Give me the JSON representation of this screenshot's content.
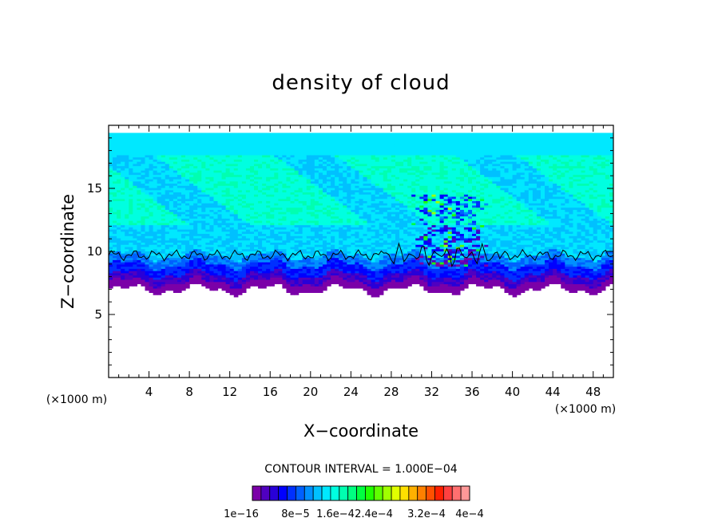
{
  "chart_data": {
    "type": "heatmap",
    "title": "density of cloud",
    "xlabel": "X−coordinate",
    "ylabel": "Z−coordinate",
    "x_unit": "(×1000 m)",
    "z_unit": "(×1000 m)",
    "xlim": [
      0,
      50
    ],
    "ylim": [
      0,
      20
    ],
    "x_ticks": [
      4,
      8,
      12,
      16,
      20,
      24,
      28,
      32,
      36,
      40,
      44,
      48
    ],
    "y_ticks": [
      5,
      10,
      15
    ],
    "contour_interval": "CONTOUR INTERVAL = 1.000E−04",
    "colorbar_labels": [
      "1e−16",
      "8e−5",
      "1.6e−4",
      "2.4e−4",
      "3.2e−4",
      "4e−4"
    ],
    "colorbar_colors": [
      "#7b00a8",
      "#5000c0",
      "#2800d8",
      "#0000ff",
      "#0030ff",
      "#0060ff",
      "#0090ff",
      "#00c0ff",
      "#00e8ff",
      "#00ffe0",
      "#00ffb0",
      "#00ff80",
      "#00ff40",
      "#20ff00",
      "#60ff00",
      "#a0ff00",
      "#e0ff00",
      "#ffe000",
      "#ffb000",
      "#ff8000",
      "#ff5000",
      "#ff2000",
      "#ff4040",
      "#ff7070",
      "#ff9898"
    ],
    "cloud_layer": {
      "base_z": 7,
      "top_z": 19.5,
      "contour_line_z": 9.8,
      "dense_band_z": [
        12,
        17.5
      ],
      "convective_region_x": [
        28,
        40
      ]
    }
  }
}
